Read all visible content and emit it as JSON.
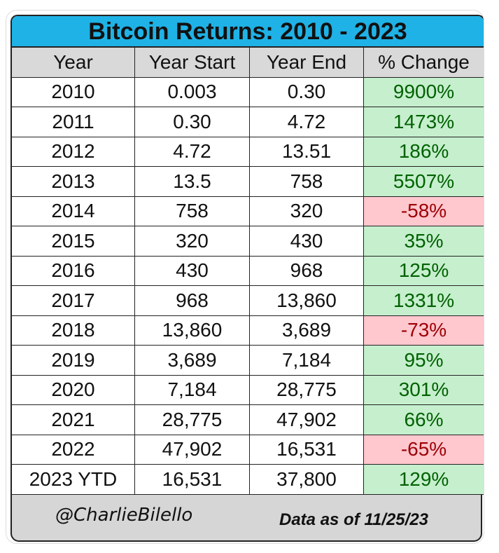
{
  "chart_data": {
    "type": "table",
    "title": "Bitcoin Returns: 2010 - 2023",
    "columns": [
      "Year",
      "Year Start",
      "Year End",
      "% Change"
    ],
    "rows": [
      [
        "2010",
        "0.003",
        "0.30",
        "9900%"
      ],
      [
        "2011",
        "0.30",
        "4.72",
        "1473%"
      ],
      [
        "2012",
        "4.72",
        "13.51",
        "186%"
      ],
      [
        "2013",
        "13.5",
        "758",
        "5507%"
      ],
      [
        "2014",
        "758",
        "320",
        "-58%"
      ],
      [
        "2015",
        "320",
        "430",
        "35%"
      ],
      [
        "2016",
        "430",
        "968",
        "125%"
      ],
      [
        "2017",
        "968",
        "13,860",
        "1331%"
      ],
      [
        "2018",
        "13,860",
        "3,689",
        "-73%"
      ],
      [
        "2019",
        "3,689",
        "7,184",
        "95%"
      ],
      [
        "2020",
        "7,184",
        "28,775",
        "301%"
      ],
      [
        "2021",
        "28,775",
        "47,902",
        "66%"
      ],
      [
        "2022",
        "47,902",
        "16,531",
        "-65%"
      ],
      [
        "2023 YTD",
        "16,531",
        "37,800",
        "129%"
      ]
    ],
    "colors": {
      "title_bg": "#1fb2e6",
      "header_bg": "#d9d9d9",
      "positive_bg": "#c6efce",
      "positive_text": "#006100",
      "negative_bg": "#ffc7ce",
      "negative_text": "#9c0006"
    }
  },
  "footer": {
    "handle": "@CharlieBilello",
    "as_of": "Data as of 11/25/23"
  }
}
